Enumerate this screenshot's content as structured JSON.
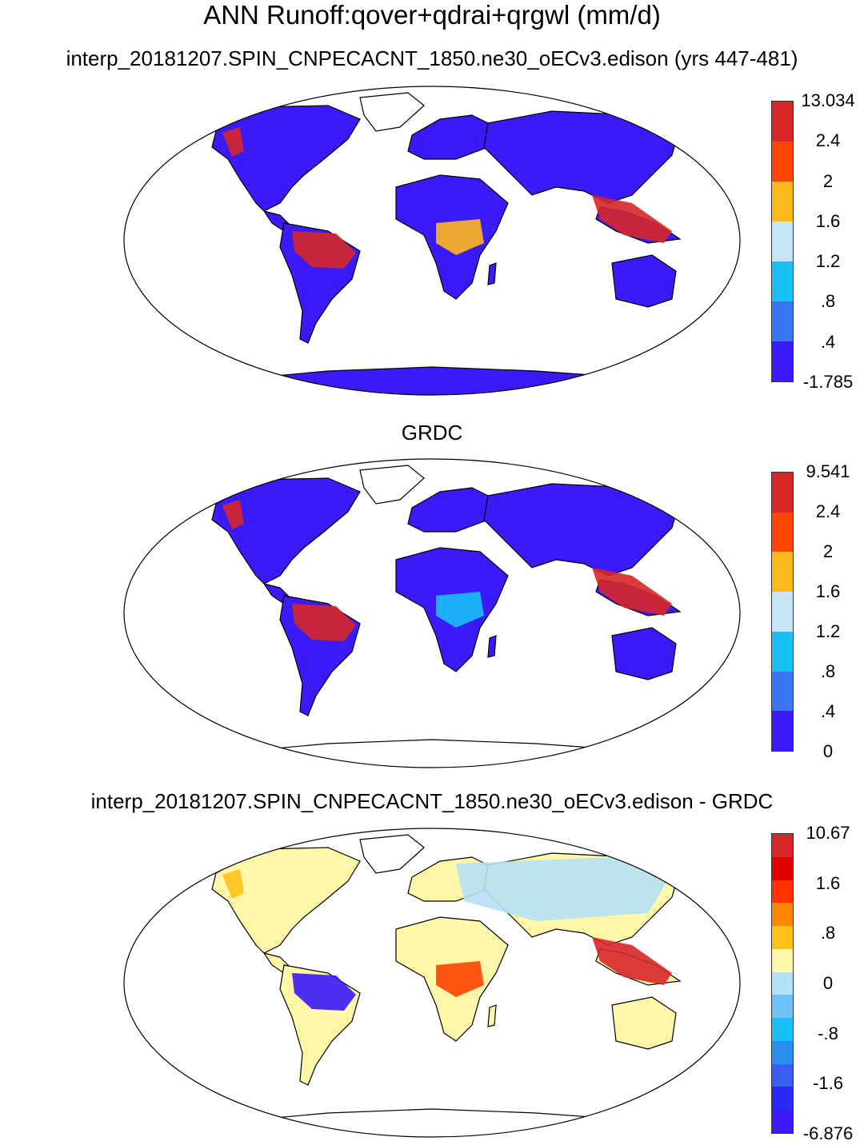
{
  "title": "ANN Runoff:qover+qdrai+qrgwl (mm/d)",
  "panels": [
    {
      "id": "model",
      "subtitle": "interp_20181207.SPIN_CNPECACNT_1850.ne30_oECv3.edison (yrs 447-481)",
      "colorbar": {
        "colors": [
          "#d62728",
          "#ff4500",
          "#ffb81c",
          "#c6e6f7",
          "#19bff5",
          "#3a76f0",
          "#3a1af7"
        ],
        "labels": [
          "13.034",
          "2.4",
          "2",
          "1.6",
          "1.2",
          ".8",
          ".4",
          "-1.785"
        ]
      },
      "land_fill": "#3a1af7",
      "antarctica_fill": "#3a1af7",
      "hotspots": [
        {
          "region": "amazon",
          "color": "#d62728"
        },
        {
          "region": "se-asia",
          "color": "#d62728"
        },
        {
          "region": "nw-america",
          "color": "#d62728"
        },
        {
          "region": "central-africa",
          "color": "#ffb81c"
        }
      ]
    },
    {
      "id": "obs",
      "subtitle": "GRDC",
      "colorbar": {
        "colors": [
          "#d62728",
          "#ff4500",
          "#ffb81c",
          "#c6e6f7",
          "#19bff5",
          "#3a76f0",
          "#3a1af7"
        ],
        "labels": [
          "9.541",
          "2.4",
          "2",
          "1.6",
          "1.2",
          ".8",
          ".4",
          "0"
        ]
      },
      "land_fill": "#3a1af7",
      "antarctica_fill": "none",
      "hotspots": [
        {
          "region": "amazon",
          "color": "#d62728"
        },
        {
          "region": "se-asia",
          "color": "#d62728"
        },
        {
          "region": "nw-america",
          "color": "#d62728"
        },
        {
          "region": "central-africa",
          "color": "#19bff5"
        }
      ]
    },
    {
      "id": "diff",
      "subtitle": "interp_20181207.SPIN_CNPECACNT_1850.ne30_oECv3.edison - GRDC",
      "colorbar": {
        "colors": [
          "#d62728",
          "#e00000",
          "#ff3300",
          "#ff8800",
          "#ffc21a",
          "#fff6a8",
          "#b5e1f5",
          "#6ec2f5",
          "#19bff5",
          "#2a8ef0",
          "#3a5ef0",
          "#2a2af7",
          "#3a1af7"
        ],
        "labels": [
          "10.67",
          "",
          "1.6",
          "",
          ".8",
          "",
          "0",
          "",
          "-.8",
          "",
          "-1.6",
          "",
          "-6.876"
        ]
      },
      "land_fill": "#fff6a8",
      "antarctica_fill": "none",
      "hotspots": [
        {
          "region": "amazon",
          "color": "#3a1af7"
        },
        {
          "region": "se-asia",
          "color": "#d62728"
        },
        {
          "region": "nw-america",
          "color": "#ffc21a"
        },
        {
          "region": "central-africa",
          "color": "#ff4500"
        },
        {
          "region": "eurasia",
          "color": "#b5e1f5"
        }
      ]
    }
  ]
}
